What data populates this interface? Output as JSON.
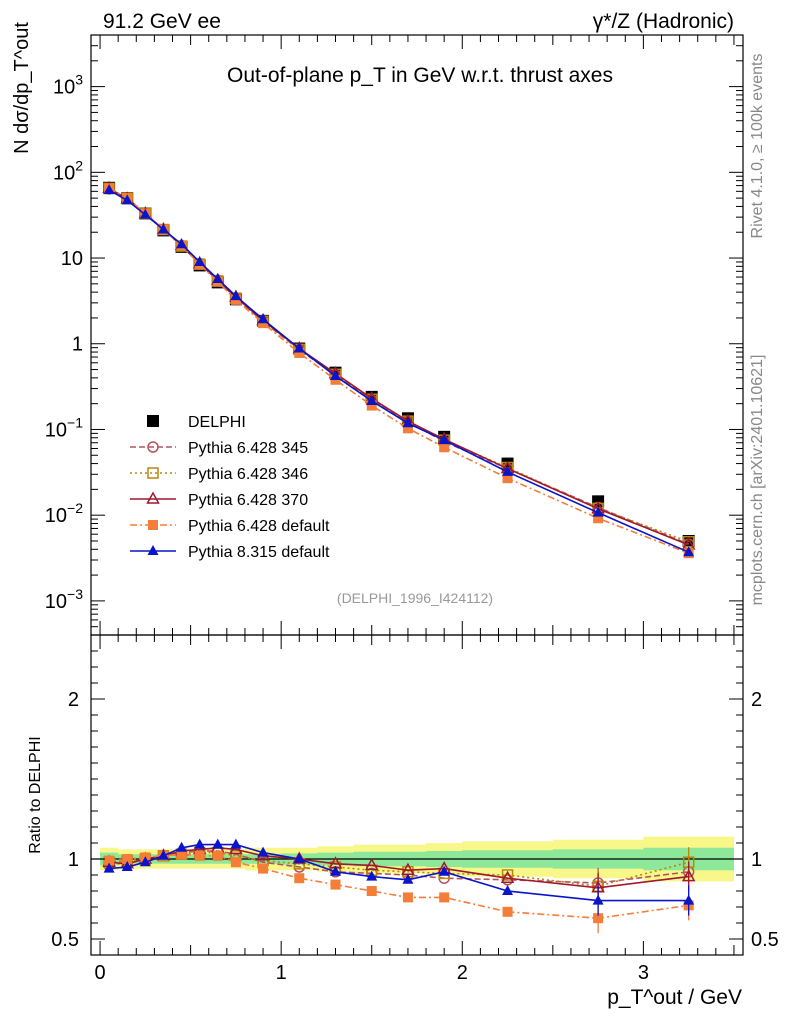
{
  "header": {
    "left": "91.2 GeV ee",
    "right": "γ*/Z (Hadronic)"
  },
  "side_labels": {
    "rivet": "Rivet 4.1.0, ≥ 100k events",
    "mcplots": "mcplots.cern.ch [arXiv:2401.10621]"
  },
  "chart_data": [
    {
      "type": "line",
      "panel": "main",
      "title": "Out-of-plane p_T in GeV w.r.t. thrust axes",
      "ylabel": "N dσ/dp_T^out",
      "yscale": "log",
      "ylim": [
        0.0004,
        4000
      ],
      "ytick_labels": [
        "10^-3",
        "10^-2",
        "10^-1",
        "1",
        "10",
        "10^2",
        "10^3"
      ],
      "analysis_tag": "(DELPHI_1996_I424112)",
      "x": [
        0.05,
        0.15,
        0.25,
        0.35,
        0.45,
        0.55,
        0.65,
        0.75,
        0.9,
        1.1,
        1.3,
        1.5,
        1.7,
        1.9,
        2.25,
        2.75,
        3.25
      ],
      "series": [
        {
          "name": "DELPHI",
          "color": "#000000",
          "marker": "square-filled",
          "values": [
            66,
            50,
            33,
            21,
            13.5,
            8.2,
            5.2,
            3.3,
            1.85,
            0.88,
            0.46,
            0.24,
            0.135,
            0.082,
            0.04,
            0.0145,
            0.005
          ]
        },
        {
          "name": "Pythia 6.428 345",
          "color": "#b5535f",
          "marker": "circle-open",
          "dash": "6,3",
          "values": [
            64,
            50,
            33,
            21.5,
            14.0,
            8.6,
            5.5,
            3.4,
            1.82,
            0.85,
            0.43,
            0.22,
            0.124,
            0.072,
            0.035,
            0.0123,
            0.0046
          ]
        },
        {
          "name": "Pythia 6.428 346",
          "color": "#b8860b",
          "marker": "square-open",
          "dash": "2,3",
          "values": [
            65,
            50,
            33,
            21.5,
            13.8,
            8.5,
            5.4,
            3.4,
            1.83,
            0.86,
            0.44,
            0.225,
            0.125,
            0.075,
            0.036,
            0.012,
            0.0049
          ]
        },
        {
          "name": "Pythia 6.428 370",
          "color": "#a0182d",
          "marker": "triangle-open",
          "dash": "",
          "values": [
            65,
            49,
            33,
            21.5,
            14.0,
            8.6,
            5.5,
            3.5,
            1.87,
            0.88,
            0.45,
            0.23,
            0.125,
            0.077,
            0.035,
            0.0119,
            0.0045
          ]
        },
        {
          "name": "Pythia 6.428 default",
          "color": "#f47d3a",
          "marker": "square-filled",
          "dash": "7,3,2,3",
          "values": [
            65,
            50,
            33,
            21.5,
            14.0,
            8.4,
            5.3,
            3.25,
            1.74,
            0.78,
            0.38,
            0.19,
            0.103,
            0.062,
            0.027,
            0.0092,
            0.0036
          ]
        },
        {
          "name": "Pythia 8.315 default",
          "color": "#0a14c8",
          "marker": "triangle-filled",
          "dash": "",
          "values": [
            62,
            47,
            32,
            21.5,
            14.5,
            9.0,
            5.7,
            3.6,
            1.93,
            0.88,
            0.42,
            0.215,
            0.118,
            0.075,
            0.032,
            0.0107,
            0.0037
          ]
        }
      ]
    },
    {
      "type": "line",
      "panel": "ratio",
      "ylabel": "Ratio to DELPHI",
      "xlabel": "p_T^out / GeV",
      "ylim": [
        0.4,
        2.4
      ],
      "ytick_labels": [
        "0.5",
        "1",
        "2"
      ],
      "xlim": [
        -0.05,
        3.55
      ],
      "xtick_labels": [
        "0",
        "1",
        "2",
        "3"
      ],
      "x": [
        0.05,
        0.15,
        0.25,
        0.35,
        0.45,
        0.55,
        0.65,
        0.75,
        0.9,
        1.1,
        1.3,
        1.5,
        1.7,
        1.9,
        2.25,
        2.75,
        3.25
      ],
      "band_inner": [
        0.04,
        0.03,
        0.03,
        0.03,
        0.03,
        0.03,
        0.03,
        0.03,
        0.03,
        0.035,
        0.04,
        0.045,
        0.045,
        0.05,
        0.055,
        0.06,
        0.07
      ],
      "band_outer": [
        0.07,
        0.06,
        0.06,
        0.06,
        0.06,
        0.06,
        0.06,
        0.06,
        0.07,
        0.07,
        0.08,
        0.09,
        0.09,
        0.1,
        0.11,
        0.12,
        0.14
      ],
      "series": [
        {
          "name": "Pythia 6.428 345",
          "color": "#b5535f",
          "marker": "circle-open",
          "dash": "6,3",
          "values": [
            0.96,
            0.98,
            1.0,
            1.02,
            1.04,
            1.05,
            1.05,
            1.03,
            0.98,
            0.95,
            0.92,
            0.91,
            0.9,
            0.88,
            0.87,
            0.85,
            0.92
          ]
        },
        {
          "name": "Pythia 6.428 346",
          "color": "#b8860b",
          "marker": "square-open",
          "dash": "2,3",
          "values": [
            0.98,
            0.99,
            1.0,
            1.02,
            1.03,
            1.04,
            1.04,
            1.02,
            0.99,
            0.97,
            0.95,
            0.93,
            0.92,
            0.91,
            0.9,
            0.83,
            0.98
          ]
        },
        {
          "name": "Pythia 6.428 370",
          "color": "#a0182d",
          "marker": "triangle-open",
          "dash": "",
          "values": [
            0.98,
            0.97,
            1.0,
            1.02,
            1.05,
            1.06,
            1.07,
            1.06,
            1.02,
            1.0,
            0.97,
            0.96,
            0.93,
            0.94,
            0.88,
            0.82,
            0.89
          ]
        },
        {
          "name": "Pythia 6.428 default",
          "color": "#f47d3a",
          "marker": "square-filled",
          "dash": "7,3,2,3",
          "values": [
            0.99,
            1.0,
            1.01,
            1.02,
            1.03,
            1.02,
            1.02,
            0.98,
            0.94,
            0.88,
            0.84,
            0.8,
            0.76,
            0.76,
            0.67,
            0.63,
            0.71
          ]
        },
        {
          "name": "Pythia 8.315 default",
          "color": "#0a14c8",
          "marker": "triangle-filled",
          "dash": "",
          "values": [
            0.94,
            0.95,
            0.98,
            1.02,
            1.07,
            1.09,
            1.09,
            1.09,
            1.04,
            1.0,
            0.92,
            0.89,
            0.87,
            0.92,
            0.8,
            0.74,
            0.74
          ]
        }
      ]
    }
  ]
}
